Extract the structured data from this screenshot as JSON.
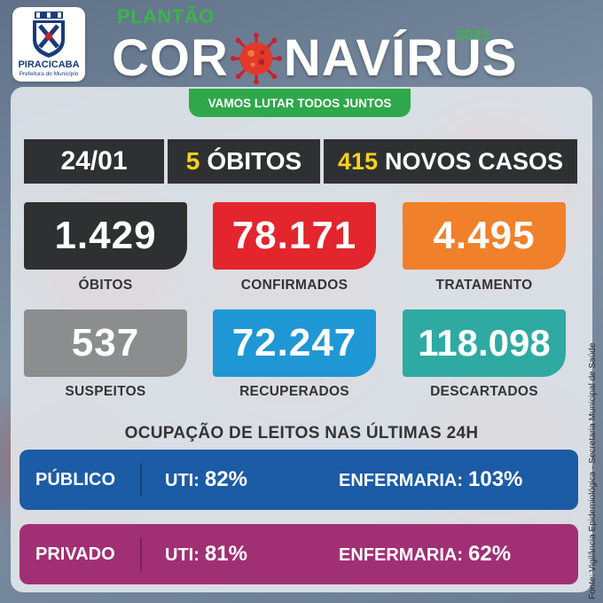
{
  "header": {
    "logo_name": "PIRACICABA",
    "logo_sub": "Prefeitura do Município",
    "kicker": "PLANTÃO",
    "title_left": "COR",
    "title_right": "NAVÍRUS",
    "year": "2022",
    "slogan": "VAMOS LUTAR TODOS JUNTOS"
  },
  "daily": {
    "date": "24/01",
    "deaths_value": "5",
    "deaths_label": "ÓBITOS",
    "cases_value": "415",
    "cases_label": "NOVOS CASOS"
  },
  "stats": [
    {
      "value": "1.429",
      "label": "ÓBITOS",
      "color": "#2f3032"
    },
    {
      "value": "78.171",
      "label": "CONFIRMADOS",
      "color": "#e3252d"
    },
    {
      "value": "4.495",
      "label": "TRATAMENTO",
      "color": "#f1802a"
    },
    {
      "value": "537",
      "label": "SUSPEITOS",
      "color": "#8c8d8f"
    },
    {
      "value": "72.247",
      "label": "RECUPERADOS",
      "color": "#1f97d4"
    },
    {
      "value": "118.098",
      "label": "DESCARTADOS",
      "color": "#2eaaa3"
    }
  ],
  "beds": {
    "title": "OCUPAÇÃO DE LEITOS NAS ÚLTIMAS 24H",
    "rows": [
      {
        "name": "PÚBLICO",
        "uti_label": "UTI:",
        "uti_value": "82%",
        "enf_label": "ENFERMARIA:",
        "enf_value": "103%",
        "color": "#1c5ca6"
      },
      {
        "name": "PRIVADO",
        "uti_label": "UTI:",
        "uti_value": "81%",
        "enf_label": "ENFERMARIA:",
        "enf_value": "62%",
        "color": "#a12f74"
      }
    ]
  },
  "source": "Fonte: Vigilância Epidemiológica - Secretaria Municipal de Saúde",
  "icons": {
    "logo": "coat-of-arms-icon",
    "virus": "coronavirus-icon"
  }
}
